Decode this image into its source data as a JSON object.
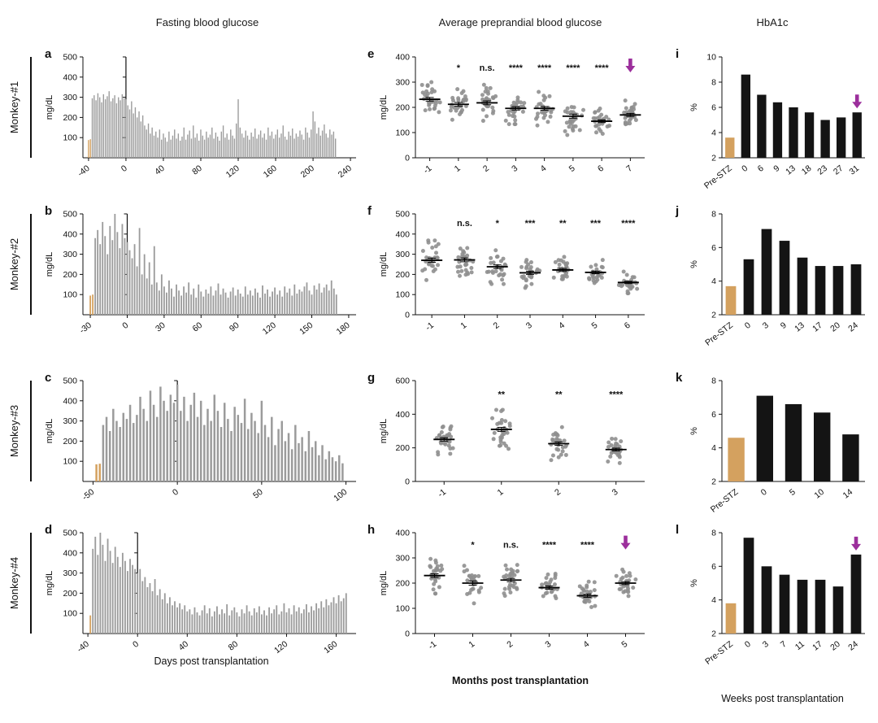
{
  "figure": {
    "column_titles": [
      "Fasting blood glucose",
      "Average preprandial blood glucose",
      "HbA1c"
    ],
    "row_labels": [
      "Monkey-#1",
      "Monkey-#2",
      "Monkey-#3",
      "Monkey-#4"
    ],
    "x_axis_titles": {
      "col1": "Days post transplantation",
      "col2": "Months post transplantation",
      "col3": "Weeks post transplantation"
    },
    "colors": {
      "bar_gray": "#9b9b9b",
      "pre_stz_tan": "#d4a15f",
      "hba1c_black": "#141414",
      "arrow_purple": "#9c2f9c",
      "dot_gray": "#8f8f8f",
      "axis": "#111111"
    }
  },
  "chart_data": [
    {
      "id": "a",
      "type": "daily",
      "title_row": "Monkey-#1",
      "ylabel": "mg/dL",
      "ylim": [
        0,
        500
      ],
      "yticks": [
        100,
        200,
        300,
        400,
        500
      ],
      "xlim": [
        -46,
        246
      ],
      "xticks": [
        -40,
        0,
        40,
        80,
        120,
        160,
        200,
        240
      ],
      "x0": -40,
      "dx": 2,
      "pre_stz_count": 2,
      "marker_x": 0,
      "values": [
        88,
        92,
        295,
        310,
        285,
        320,
        300,
        275,
        315,
        290,
        305,
        330,
        280,
        295,
        310,
        270,
        300,
        285,
        315,
        295,
        290,
        260,
        240,
        280,
        220,
        250,
        200,
        230,
        180,
        210,
        160,
        140,
        170,
        120,
        150,
        110,
        130,
        100,
        140,
        90,
        120,
        100,
        80,
        130,
        90,
        110,
        140,
        95,
        120,
        85,
        105,
        150,
        90,
        115,
        135,
        95,
        160,
        100,
        120,
        85,
        140,
        110,
        90,
        130,
        100,
        115,
        150,
        95,
        125,
        105,
        85,
        130,
        160,
        100,
        120,
        90,
        140,
        110,
        95,
        170,
        290,
        150,
        120,
        100,
        135,
        110,
        90,
        125,
        105,
        145,
        95,
        115,
        135,
        100,
        120,
        90,
        150,
        110,
        130,
        95,
        115,
        140,
        100,
        120,
        160,
        105,
        90,
        130,
        110,
        145,
        95,
        120,
        105,
        135,
        115,
        90,
        150,
        125,
        100,
        140,
        230,
        180,
        120,
        150,
        110,
        135,
        165,
        120,
        100,
        140,
        115,
        130,
        95
      ]
    },
    {
      "id": "b",
      "type": "daily",
      "title_row": "Monkey-#2",
      "ylabel": "mg/dL",
      "ylim": [
        0,
        500
      ],
      "yticks": [
        100,
        200,
        300,
        400,
        500
      ],
      "xlim": [
        -36,
        186
      ],
      "xticks": [
        -30,
        0,
        30,
        60,
        90,
        120,
        150,
        180
      ],
      "x0": -30,
      "dx": 2,
      "pre_stz_count": 2,
      "marker_x": 0,
      "values": [
        95,
        100,
        380,
        420,
        350,
        460,
        390,
        300,
        440,
        370,
        500,
        410,
        330,
        450,
        380,
        360,
        320,
        280,
        350,
        240,
        430,
        200,
        300,
        180,
        260,
        150,
        340,
        160,
        120,
        200,
        140,
        110,
        170,
        130,
        90,
        150,
        120,
        95,
        140,
        110,
        160,
        100,
        130,
        85,
        150,
        115,
        90,
        125,
        105,
        140,
        95,
        120,
        155,
        100,
        130,
        110,
        85,
        115,
        135,
        95,
        125,
        105,
        90,
        140,
        100,
        120,
        95,
        130,
        110,
        85,
        145,
        105,
        125,
        90,
        115,
        135,
        100,
        120,
        90,
        140,
        110,
        130,
        95,
        150,
        105,
        125,
        115,
        140,
        160,
        120,
        100,
        145,
        125,
        155,
        110,
        135,
        150,
        120,
        170,
        130,
        100
      ]
    },
    {
      "id": "c",
      "type": "daily",
      "title_row": "Monkey-#3",
      "ylabel": "mg/dL",
      "ylim": [
        0,
        500
      ],
      "yticks": [
        100,
        200,
        300,
        400,
        500
      ],
      "xlim": [
        -56,
        106
      ],
      "xticks": [
        -50,
        0,
        50,
        100
      ],
      "x0": -48,
      "dx": 2,
      "pre_stz_count": 2,
      "marker_x": 0,
      "values": [
        85,
        88,
        280,
        320,
        250,
        360,
        300,
        270,
        340,
        310,
        380,
        290,
        330,
        420,
        360,
        300,
        450,
        380,
        320,
        470,
        400,
        350,
        430,
        390,
        480,
        350,
        420,
        300,
        380,
        440,
        320,
        400,
        280,
        360,
        300,
        430,
        350,
        270,
        390,
        310,
        250,
        370,
        330,
        290,
        410,
        260,
        340,
        300,
        240,
        400,
        280,
        220,
        320,
        180,
        260,
        300,
        200,
        240,
        160,
        280,
        190,
        220,
        150,
        250,
        170,
        200,
        130,
        180,
        110,
        150,
        120,
        100,
        130,
        90
      ]
    },
    {
      "id": "d",
      "type": "daily",
      "title_row": "Monkey-#4",
      "ylabel": "mg/dL",
      "ylim": [
        0,
        500
      ],
      "yticks": [
        100,
        200,
        300,
        400,
        500
      ],
      "xlim": [
        -44,
        176
      ],
      "xticks": [
        -40,
        0,
        40,
        80,
        120,
        160
      ],
      "x0": -38,
      "dx": 2,
      "pre_stz_count": 1,
      "marker_x": 0,
      "values": [
        90,
        420,
        480,
        390,
        500,
        440,
        360,
        470,
        410,
        350,
        430,
        380,
        330,
        400,
        360,
        310,
        370,
        340,
        320,
        300,
        320,
        260,
        280,
        230,
        250,
        210,
        270,
        190,
        220,
        170,
        200,
        150,
        180,
        140,
        160,
        130,
        150,
        120,
        140,
        110,
        120,
        95,
        130,
        105,
        90,
        115,
        140,
        100,
        125,
        85,
        110,
        135,
        95,
        120,
        100,
        145,
        90,
        115,
        130,
        105,
        85,
        120,
        100,
        140,
        110,
        90,
        125,
        105,
        135,
        95,
        115,
        90,
        130,
        100,
        120,
        140,
        95,
        110,
        150,
        105,
        125,
        95,
        140,
        110,
        130,
        100,
        120,
        145,
        105,
        135,
        115,
        150,
        125,
        160,
        130,
        170,
        140,
        155,
        180,
        150,
        190,
        160,
        175,
        200
      ]
    },
    {
      "id": "e",
      "type": "scatter",
      "title_row": "Monkey-#1",
      "ylabel": "mg/dL",
      "ylim": [
        0,
        400
      ],
      "yticks": [
        0,
        100,
        200,
        300,
        400
      ],
      "categories": [
        "-1",
        "1",
        "2",
        "3",
        "4",
        "5",
        "6",
        "7"
      ],
      "means": [
        232,
        212,
        218,
        196,
        196,
        165,
        145,
        170
      ],
      "sds": [
        38,
        40,
        40,
        35,
        38,
        42,
        28,
        32
      ],
      "n": 28,
      "sig": [
        "",
        "*",
        "n.s.",
        "****",
        "****",
        "****",
        "****",
        ""
      ],
      "arrow_index": 7,
      "sig_y": 345
    },
    {
      "id": "f",
      "type": "scatter",
      "title_row": "Monkey-#2",
      "ylabel": "mg/dL",
      "ylim": [
        0,
        500
      ],
      "yticks": [
        0,
        100,
        200,
        300,
        400,
        500
      ],
      "categories": [
        "-1",
        "1",
        "2",
        "3",
        "4",
        "5",
        "6"
      ],
      "means": [
        270,
        272,
        238,
        208,
        222,
        210,
        160
      ],
      "sds": [
        55,
        50,
        48,
        42,
        40,
        35,
        30
      ],
      "n": 28,
      "sig": [
        "",
        "n.s.",
        "*",
        "***",
        "**",
        "***",
        "****"
      ],
      "arrow_index": null,
      "sig_y": 440
    },
    {
      "id": "g",
      "type": "scatter",
      "title_row": "Monkey-#3",
      "ylabel": "mg/dL",
      "ylim": [
        0,
        600
      ],
      "yticks": [
        0,
        200,
        400,
        600
      ],
      "categories": [
        "-1",
        "1",
        "2",
        "3"
      ],
      "means": [
        250,
        310,
        225,
        190
      ],
      "sds": [
        55,
        65,
        55,
        45
      ],
      "n": 30,
      "sig": [
        "",
        "**",
        "**",
        "****"
      ],
      "arrow_index": null,
      "sig_y": 500
    },
    {
      "id": "h",
      "type": "scatter",
      "title_row": "Monkey-#4",
      "ylabel": "mg/dL",
      "ylim": [
        0,
        400
      ],
      "yticks": [
        0,
        100,
        200,
        300,
        400
      ],
      "categories": [
        "-1",
        "1",
        "2",
        "3",
        "4",
        "5"
      ],
      "means": [
        230,
        200,
        212,
        182,
        150,
        200
      ],
      "sds": [
        40,
        45,
        35,
        35,
        35,
        30
      ],
      "n": 28,
      "sig": [
        "",
        "*",
        "n.s.",
        "****",
        "****",
        ""
      ],
      "arrow_index": 5,
      "sig_y": 340
    },
    {
      "id": "i",
      "type": "hba1c",
      "title_row": "Monkey-#1",
      "ylabel": "%",
      "ylim": [
        2,
        10
      ],
      "yticks": [
        2,
        4,
        6,
        8,
        10
      ],
      "categories": [
        "Pre-STZ",
        "0",
        "6",
        "9",
        "13",
        "18",
        "23",
        "27",
        "31"
      ],
      "values": [
        3.6,
        8.6,
        7.0,
        6.4,
        6.0,
        5.6,
        5.0,
        5.2,
        5.6
      ],
      "arrow_index": 8
    },
    {
      "id": "j",
      "type": "hba1c",
      "title_row": "Monkey-#2",
      "ylabel": "%",
      "ylim": [
        2,
        8
      ],
      "yticks": [
        2,
        4,
        6,
        8
      ],
      "categories": [
        "Pre-STZ",
        "0",
        "3",
        "9",
        "13",
        "17",
        "20",
        "24"
      ],
      "values": [
        3.7,
        5.3,
        7.1,
        6.4,
        5.4,
        4.9,
        4.9,
        5.0
      ],
      "arrow_index": null
    },
    {
      "id": "k",
      "type": "hba1c",
      "title_row": "Monkey-#3",
      "ylabel": "%",
      "ylim": [
        2,
        8
      ],
      "yticks": [
        2,
        4,
        6,
        8
      ],
      "categories": [
        "Pre-STZ",
        "0",
        "5",
        "10",
        "14"
      ],
      "values": [
        4.6,
        7.1,
        6.6,
        6.1,
        4.8
      ],
      "arrow_index": null
    },
    {
      "id": "l",
      "type": "hba1c",
      "title_row": "Monkey-#4",
      "ylabel": "%",
      "ylim": [
        2,
        8
      ],
      "yticks": [
        2,
        4,
        6,
        8
      ],
      "categories": [
        "Pre-STZ",
        "0",
        "3",
        "7",
        "11",
        "17",
        "20",
        "24"
      ],
      "values": [
        3.8,
        7.7,
        6.0,
        5.5,
        5.2,
        5.2,
        4.8,
        6.7
      ],
      "arrow_index": 7
    }
  ]
}
